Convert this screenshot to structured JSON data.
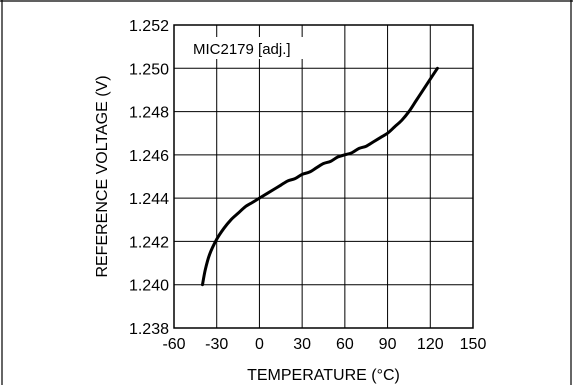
{
  "chart_data": {
    "type": "line",
    "title": "",
    "annotation": "MIC2179 [adj.]",
    "xlabel": "TEMPERATURE (°C)",
    "ylabel": "REFERENCE VOLTAGE (V)",
    "xlim": [
      -60,
      150
    ],
    "ylim": [
      1.238,
      1.252
    ],
    "xticks": [
      -60,
      -30,
      0,
      30,
      60,
      90,
      120,
      150
    ],
    "xtick_labels": [
      "-60",
      "-30",
      "0",
      "30",
      "60",
      "90",
      "120",
      "150"
    ],
    "yticks": [
      1.238,
      1.24,
      1.242,
      1.244,
      1.246,
      1.248,
      1.25,
      1.252
    ],
    "ytick_labels": [
      "1.238",
      "1.240",
      "1.242",
      "1.244",
      "1.246",
      "1.248",
      "1.250",
      "1.252"
    ],
    "grid": true,
    "line_color": "#000000",
    "series": [
      {
        "x": [
          -40,
          -38,
          -35,
          -30,
          -25,
          -20,
          -15,
          -10,
          -5,
          0,
          5,
          10,
          15,
          20,
          25,
          30,
          35,
          40,
          45,
          50,
          55,
          60,
          65,
          70,
          75,
          80,
          85,
          90,
          95,
          100,
          105,
          110,
          115,
          120,
          125
        ],
        "y": [
          1.24,
          1.2407,
          1.2414,
          1.2421,
          1.2426,
          1.243,
          1.2433,
          1.2436,
          1.2438,
          1.244,
          1.2442,
          1.2444,
          1.2446,
          1.2448,
          1.2449,
          1.2451,
          1.2452,
          1.2454,
          1.2456,
          1.2457,
          1.2459,
          1.246,
          1.2461,
          1.2463,
          1.2464,
          1.2466,
          1.2468,
          1.247,
          1.2473,
          1.2476,
          1.248,
          1.2485,
          1.249,
          1.2495,
          1.25
        ]
      }
    ]
  }
}
